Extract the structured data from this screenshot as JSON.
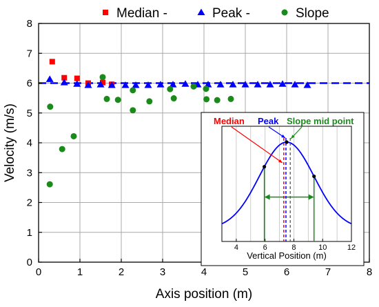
{
  "chart_data": {
    "type": "scatter",
    "xlabel": "Axis position (m)",
    "ylabel": "Velocity (m/s)",
    "xlim": [
      0,
      8
    ],
    "ylim": [
      0,
      8
    ],
    "xticks": [
      "0",
      "1",
      "2",
      "3",
      "4",
      "5",
      "6",
      "7",
      "8"
    ],
    "yticks": [
      "0",
      "1",
      "2",
      "3",
      "4",
      "5",
      "6",
      "7",
      "8"
    ],
    "grid": true,
    "legend_position": "top",
    "reference_line": {
      "y": 6.0,
      "style": "dashed",
      "color": "#0000ff"
    },
    "series": [
      {
        "name": "Median -",
        "marker": "square",
        "color": "#ff0000",
        "points": [
          [
            0.33,
            6.72
          ],
          [
            0.62,
            6.18
          ],
          [
            0.93,
            6.16
          ],
          [
            1.2,
            6.0
          ],
          [
            1.55,
            6.02
          ],
          [
            1.77,
            5.96
          ]
        ]
      },
      {
        "name": "Peak -",
        "marker": "triangle",
        "color": "#0000ff",
        "points": [
          [
            0.27,
            6.13
          ],
          [
            0.62,
            6.02
          ],
          [
            0.93,
            5.97
          ],
          [
            1.2,
            5.93
          ],
          [
            1.5,
            5.95
          ],
          [
            1.77,
            5.93
          ],
          [
            2.1,
            5.93
          ],
          [
            2.35,
            5.93
          ],
          [
            2.65,
            5.93
          ],
          [
            2.95,
            5.95
          ],
          [
            3.25,
            5.95
          ],
          [
            3.55,
            5.97
          ],
          [
            3.85,
            5.95
          ],
          [
            4.1,
            5.95
          ],
          [
            4.4,
            5.95
          ],
          [
            4.7,
            5.95
          ],
          [
            5.0,
            5.95
          ],
          [
            5.3,
            5.95
          ],
          [
            5.6,
            5.95
          ],
          [
            5.9,
            5.97
          ],
          [
            6.2,
            5.95
          ],
          [
            6.5,
            5.93
          ]
        ]
      },
      {
        "name": "Slope",
        "marker": "circle",
        "color": "#1a8a1a",
        "points": [
          [
            0.28,
            5.21
          ],
          [
            0.27,
            2.61
          ],
          [
            0.57,
            3.79
          ],
          [
            0.85,
            4.22
          ],
          [
            1.55,
            6.2
          ],
          [
            1.65,
            5.47
          ],
          [
            1.92,
            5.44
          ],
          [
            2.28,
            5.09
          ],
          [
            2.28,
            5.76
          ],
          [
            2.68,
            5.39
          ],
          [
            3.18,
            5.8
          ],
          [
            3.27,
            5.49
          ],
          [
            3.75,
            5.89
          ],
          [
            4.05,
            5.81
          ],
          [
            4.06,
            5.46
          ],
          [
            4.32,
            5.43
          ],
          [
            4.65,
            5.47
          ]
        ]
      }
    ],
    "inset": {
      "type": "line",
      "xlabel": "Vertical Position (m)",
      "xlim": [
        3,
        12
      ],
      "xticks": [
        "4",
        "6",
        "8",
        "10",
        "12"
      ],
      "curve": {
        "shape": "gaussian",
        "center": 7.5,
        "sigma": 1.9,
        "baseline": 0.06,
        "color": "#0000ff"
      },
      "peak_point_x": 7.5,
      "half_points_x": [
        5.95,
        9.4
      ],
      "median_x": 7.3,
      "peak_x": 7.45,
      "slope_mid_x": 7.75,
      "annotations": [
        {
          "text": "Median",
          "color": "#ff0000"
        },
        {
          "text": "Peak",
          "color": "#0000ff"
        },
        {
          "text": "Slope mid point",
          "color": "#1a8a1a"
        }
      ]
    }
  }
}
